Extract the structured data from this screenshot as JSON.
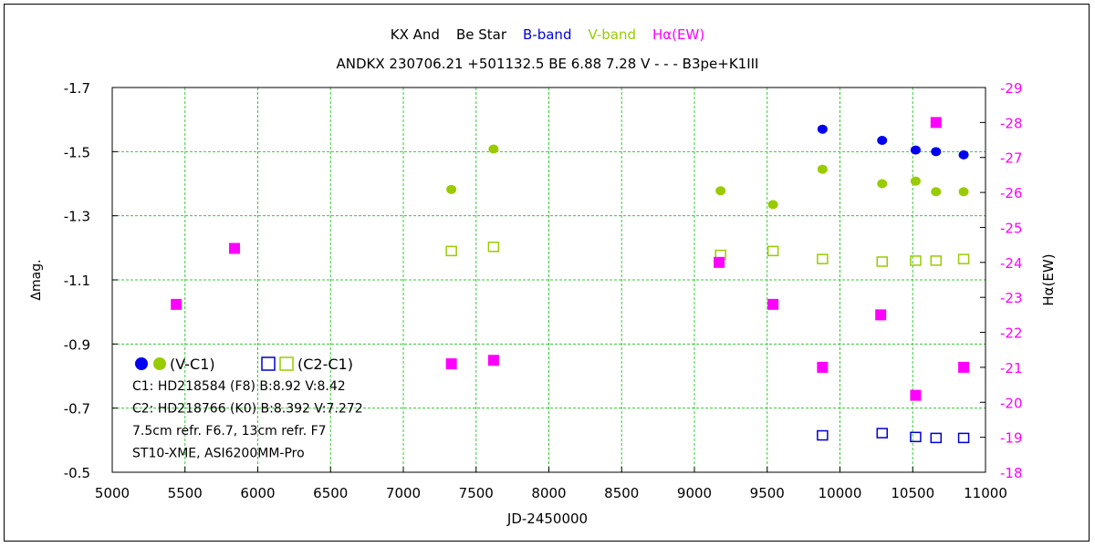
{
  "chart_data": {
    "type": "scatter",
    "title_parts": [
      {
        "text": "KX And",
        "color": "#000000"
      },
      {
        "text": "Be Star",
        "color": "#000000"
      },
      {
        "text": "B-band",
        "color": "#0000dd"
      },
      {
        "text": "V-band",
        "color": "#99cc00"
      },
      {
        "text": "Hα(EW)",
        "color": "#ff00ff"
      }
    ],
    "subtitle": "ANDKX 230706.21 +501132.5 BE 6.88 7.28 V - - - B3pe+K1III",
    "xlabel": "JD-2450000",
    "ylabel": "Δmag.",
    "y2label": "Hα(EW)",
    "xlim": [
      5000,
      11000
    ],
    "ylim": [
      -0.5,
      -1.7
    ],
    "y2lim": [
      -18,
      -29
    ],
    "x_ticks": [
      "5000",
      "5500",
      "6000",
      "6500",
      "7000",
      "7500",
      "8000",
      "8500",
      "9000",
      "9500",
      "10000",
      "10500",
      "11000"
    ],
    "y_ticks": [
      "-1.7",
      "-1.5",
      "-1.3",
      "-1.1",
      "-0.9",
      "-0.7",
      "-0.5"
    ],
    "y2_ticks": [
      "-29",
      "-28",
      "-27",
      "-26",
      "-25",
      "-24",
      "-23",
      "-22",
      "-21",
      "-20",
      "-19",
      "-18"
    ],
    "grid": true,
    "grid_color": "#33cc33",
    "series": [
      {
        "marker": "filled-circle",
        "color": "#0000ee",
        "axis": "left",
        "points": [
          [
            9880,
            -1.57
          ],
          [
            10290,
            -1.535
          ],
          [
            10520,
            -1.505
          ],
          [
            10660,
            -1.5
          ],
          [
            10850,
            -1.49
          ]
        ]
      },
      {
        "marker": "filled-circle",
        "color": "#99cc00",
        "axis": "left",
        "points": [
          [
            7330,
            -1.382
          ],
          [
            7620,
            -1.508
          ],
          [
            9180,
            -1.378
          ],
          [
            9540,
            -1.335
          ],
          [
            9880,
            -1.445
          ],
          [
            10290,
            -1.4
          ],
          [
            10520,
            -1.408
          ],
          [
            10660,
            -1.375
          ],
          [
            10850,
            -1.375
          ]
        ]
      },
      {
        "marker": "open-square",
        "color": "#0000cc",
        "axis": "left",
        "points": [
          [
            9880,
            -0.615
          ],
          [
            10290,
            -0.622
          ],
          [
            10520,
            -0.61
          ],
          [
            10660,
            -0.607
          ],
          [
            10850,
            -0.607
          ]
        ]
      },
      {
        "marker": "open-square",
        "color": "#99cc00",
        "axis": "left",
        "points": [
          [
            7330,
            -1.19
          ],
          [
            7620,
            -1.203
          ],
          [
            9180,
            -1.178
          ],
          [
            9540,
            -1.19
          ],
          [
            9880,
            -1.165
          ],
          [
            10290,
            -1.157
          ],
          [
            10520,
            -1.16
          ],
          [
            10660,
            -1.16
          ],
          [
            10850,
            -1.165
          ]
        ]
      },
      {
        "marker": "filled-square",
        "color": "#ff00ff",
        "axis": "right",
        "points": [
          [
            5440,
            -22.8
          ],
          [
            5840,
            -24.4
          ],
          [
            7330,
            -21.1
          ],
          [
            7620,
            -21.2
          ],
          [
            9170,
            -24.0
          ],
          [
            9540,
            -22.8
          ],
          [
            9880,
            -21.0
          ],
          [
            10280,
            -22.5
          ],
          [
            10520,
            -20.2
          ],
          [
            10660,
            -28.0
          ],
          [
            10850,
            -21.0
          ]
        ]
      }
    ],
    "legend": {
      "items": [
        {
          "markers": [
            [
              "filled-circle",
              "#0000ee"
            ],
            [
              "filled-circle",
              "#99cc00"
            ]
          ],
          "label": "(V-C1)"
        },
        {
          "markers": [
            [
              "open-square",
              "#0000cc"
            ],
            [
              "open-square",
              "#99cc00"
            ]
          ],
          "label": "(C2-C1)"
        }
      ]
    },
    "notes": [
      "C1: HD218584 (F8)  B:8.92  V:8.42",
      "C2: HD218766 (K0)  B:8.392  V:7.272",
      "7.5cm refr. F6.7,  13cm refr. F7",
      "ST10-XME,  ASI6200MM-Pro"
    ],
    "right_axis_color": "#ff00ff"
  }
}
